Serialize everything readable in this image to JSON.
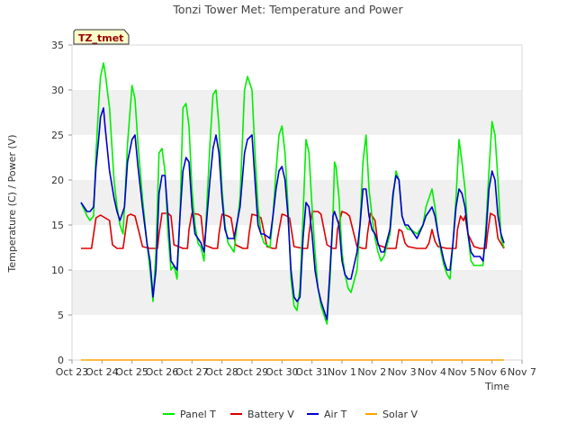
{
  "chart_data": {
    "type": "line",
    "title": "Tonzi Tower Met: Temperature and Power",
    "xlabel": "Time",
    "ylabel": "Temperature (C) / Power (V)",
    "ylim": [
      0,
      35
    ],
    "yticks": [
      0,
      5,
      10,
      15,
      20,
      25,
      30,
      35
    ],
    "xlim": [
      0,
      15
    ],
    "xticks": [
      0,
      1,
      2,
      3,
      4,
      5,
      6,
      7,
      8,
      9,
      10,
      11,
      12,
      13,
      14,
      15
    ],
    "xtick_labels": [
      "Oct 23",
      "Oct 24",
      "Oct 25",
      "Oct 26",
      "Oct 27",
      "Oct 28",
      "Oct 29",
      "Oct 30",
      "Oct 31",
      "Nov 1",
      "Nov 2",
      "Nov 3",
      "Nov 4",
      "Nov 5",
      "Nov 6",
      "Nov 7"
    ],
    "station_label": "TZ_tmet",
    "grid": "horizontal bands",
    "legend_position": "bottom",
    "series": [
      {
        "name": "Panel T",
        "color": "#00ee00",
        "x": [
          0.3,
          0.5,
          0.6,
          0.72,
          0.8,
          0.9,
          0.95,
          1.05,
          1.1,
          1.25,
          1.4,
          1.5,
          1.6,
          1.7,
          1.75,
          1.85,
          2.0,
          2.1,
          2.2,
          2.35,
          2.5,
          2.6,
          2.7,
          2.8,
          2.9,
          3.0,
          3.1,
          3.2,
          3.3,
          3.4,
          3.5,
          3.6,
          3.7,
          3.8,
          3.9,
          4.0,
          4.1,
          4.2,
          4.3,
          4.4,
          4.6,
          4.7,
          4.8,
          4.9,
          5.0,
          5.1,
          5.2,
          5.3,
          5.4,
          5.6,
          5.75,
          5.85,
          6.0,
          6.1,
          6.2,
          6.3,
          6.4,
          6.6,
          6.7,
          6.8,
          6.9,
          7.0,
          7.1,
          7.2,
          7.3,
          7.4,
          7.5,
          7.6,
          7.7,
          7.8,
          7.9,
          8.0,
          8.1,
          8.2,
          8.3,
          8.4,
          8.5,
          8.6,
          8.7,
          8.75,
          8.8,
          8.9,
          9.0,
          9.1,
          9.2,
          9.3,
          9.5,
          9.6,
          9.7,
          9.8,
          9.9,
          10.0,
          10.1,
          10.2,
          10.3,
          10.4,
          10.6,
          10.7,
          10.8,
          10.9,
          11.0,
          11.1,
          11.2,
          11.3,
          11.5,
          11.7,
          11.8,
          11.9,
          12.0,
          12.1,
          12.2,
          12.3,
          12.4,
          12.5,
          12.6,
          12.7,
          12.8,
          12.9,
          13.0,
          13.1,
          13.2,
          13.3,
          13.4,
          13.6,
          13.7,
          13.8,
          13.9,
          14.0,
          14.1,
          14.2,
          14.3,
          14.4
        ],
        "values": [
          17.5,
          16.0,
          15.5,
          16.0,
          23.0,
          29.0,
          31.5,
          33.0,
          32.0,
          28.0,
          20.0,
          17.0,
          15.0,
          14.0,
          17.0,
          24.0,
          30.5,
          29.0,
          24.0,
          18.0,
          13.0,
          10.0,
          6.5,
          12.0,
          23.0,
          23.5,
          21.0,
          14.0,
          10.0,
          10.5,
          9.0,
          16.0,
          28.0,
          28.5,
          26.0,
          19.0,
          15.0,
          13.0,
          12.5,
          11.0,
          24.0,
          29.5,
          30.0,
          26.0,
          19.0,
          15.0,
          13.0,
          12.5,
          12.0,
          18.0,
          30.0,
          31.5,
          30.0,
          23.0,
          17.0,
          14.0,
          13.0,
          12.5,
          16.0,
          21.0,
          25.0,
          26.0,
          23.0,
          17.0,
          9.0,
          6.0,
          5.5,
          8.0,
          16.0,
          24.5,
          23.0,
          17.0,
          12.0,
          8.0,
          6.0,
          5.0,
          4.0,
          9.0,
          16.0,
          22.0,
          21.5,
          18.0,
          12.0,
          9.5,
          8.0,
          7.5,
          10.0,
          15.0,
          22.0,
          25.0,
          19.0,
          16.0,
          13.5,
          12.0,
          11.0,
          11.5,
          14.0,
          18.0,
          21.0,
          20.0,
          16.0,
          15.0,
          14.5,
          14.5,
          14.0,
          15.0,
          17.0,
          18.0,
          19.0,
          17.0,
          14.0,
          12.0,
          10.5,
          9.5,
          9.0,
          13.0,
          18.0,
          24.5,
          22.0,
          19.0,
          14.0,
          11.0,
          10.5,
          10.5,
          10.5,
          15.0,
          21.0,
          26.5,
          25.0,
          20.0,
          13.5,
          12.5
        ]
      },
      {
        "name": "Battery V",
        "color": "#dd0000",
        "x": [
          0.3,
          0.65,
          0.7,
          0.8,
          0.95,
          1.0,
          1.25,
          1.35,
          1.5,
          1.7,
          1.75,
          1.85,
          1.95,
          2.1,
          2.25,
          2.35,
          2.6,
          2.85,
          2.9,
          3.0,
          3.2,
          3.3,
          3.4,
          3.7,
          3.85,
          3.9,
          4.0,
          4.2,
          4.3,
          4.4,
          4.7,
          4.85,
          4.9,
          5.0,
          5.2,
          5.3,
          5.45,
          5.7,
          5.85,
          5.9,
          6.0,
          6.2,
          6.3,
          6.5,
          6.7,
          6.8,
          6.85,
          7.0,
          7.1,
          7.25,
          7.4,
          7.7,
          7.85,
          7.9,
          8.0,
          8.2,
          8.3,
          8.5,
          8.7,
          8.8,
          8.85,
          9.0,
          9.15,
          9.25,
          9.5,
          9.7,
          9.8,
          9.85,
          9.95,
          10.1,
          10.2,
          10.5,
          10.8,
          10.9,
          11.0,
          11.1,
          11.2,
          11.5,
          11.8,
          11.9,
          12.0,
          12.1,
          12.2,
          12.5,
          12.7,
          12.8,
          12.85,
          12.95,
          13.05,
          13.1,
          13.2,
          13.4,
          13.6,
          13.8,
          13.85,
          13.95,
          14.1,
          14.2,
          14.4
        ],
        "values": [
          12.4,
          12.4,
          13.5,
          15.8,
          16.1,
          16.0,
          15.5,
          12.8,
          12.4,
          12.4,
          13.5,
          16.0,
          16.2,
          16.0,
          14.0,
          12.6,
          12.4,
          12.4,
          14.0,
          16.3,
          16.3,
          16.0,
          12.8,
          12.4,
          12.4,
          14.5,
          16.3,
          16.2,
          16.0,
          12.8,
          12.4,
          12.4,
          14.0,
          16.2,
          16.0,
          15.8,
          12.8,
          12.4,
          12.4,
          14.0,
          16.2,
          16.0,
          15.8,
          12.6,
          12.4,
          12.4,
          13.5,
          16.2,
          16.1,
          15.8,
          12.6,
          12.4,
          12.4,
          14.0,
          16.5,
          16.5,
          16.2,
          12.8,
          12.4,
          12.4,
          14.5,
          16.5,
          16.3,
          16.0,
          12.6,
          12.4,
          12.4,
          14.0,
          16.3,
          15.5,
          12.8,
          12.4,
          12.4,
          14.5,
          14.3,
          13.0,
          12.6,
          12.4,
          12.4,
          13.0,
          14.5,
          13.2,
          12.6,
          12.4,
          12.4,
          12.4,
          14.5,
          16.0,
          15.5,
          16.0,
          14.0,
          12.6,
          12.4,
          12.4,
          14.0,
          16.3,
          16.0,
          13.5,
          12.4
        ]
      },
      {
        "name": "Air T",
        "color": "#0000cc",
        "x": [
          0.3,
          0.5,
          0.6,
          0.72,
          0.8,
          0.9,
          0.95,
          1.05,
          1.1,
          1.25,
          1.4,
          1.5,
          1.6,
          1.7,
          1.75,
          1.85,
          2.0,
          2.1,
          2.2,
          2.35,
          2.5,
          2.6,
          2.7,
          2.8,
          2.9,
          3.0,
          3.1,
          3.2,
          3.3,
          3.4,
          3.5,
          3.6,
          3.7,
          3.8,
          3.9,
          4.0,
          4.1,
          4.2,
          4.3,
          4.4,
          4.6,
          4.7,
          4.8,
          4.9,
          5.0,
          5.1,
          5.2,
          5.3,
          5.4,
          5.6,
          5.75,
          5.85,
          6.0,
          6.1,
          6.2,
          6.3,
          6.4,
          6.6,
          6.7,
          6.8,
          6.9,
          7.0,
          7.1,
          7.2,
          7.3,
          7.4,
          7.5,
          7.6,
          7.7,
          7.8,
          7.9,
          8.0,
          8.1,
          8.2,
          8.3,
          8.4,
          8.5,
          8.6,
          8.7,
          8.75,
          8.8,
          8.9,
          9.0,
          9.1,
          9.2,
          9.3,
          9.5,
          9.6,
          9.7,
          9.8,
          9.9,
          10.0,
          10.1,
          10.2,
          10.3,
          10.4,
          10.6,
          10.7,
          10.8,
          10.9,
          11.0,
          11.1,
          11.2,
          11.3,
          11.5,
          11.7,
          11.8,
          11.9,
          12.0,
          12.1,
          12.2,
          12.3,
          12.4,
          12.5,
          12.6,
          12.7,
          12.8,
          12.9,
          13.0,
          13.1,
          13.2,
          13.3,
          13.4,
          13.6,
          13.7,
          13.8,
          13.9,
          14.0,
          14.1,
          14.2,
          14.3,
          14.4
        ],
        "values": [
          17.5,
          16.5,
          16.5,
          17.0,
          21.5,
          25.0,
          27.0,
          28.0,
          26.0,
          21.0,
          18.0,
          16.5,
          15.5,
          16.5,
          17.0,
          22.0,
          24.5,
          25.0,
          21.5,
          17.0,
          13.0,
          11.0,
          7.0,
          10.0,
          18.5,
          20.5,
          20.5,
          16.0,
          11.0,
          10.5,
          10.0,
          16.0,
          21.0,
          22.5,
          22.0,
          17.0,
          14.0,
          13.5,
          13.0,
          12.0,
          20.0,
          23.5,
          25.0,
          23.0,
          18.0,
          14.5,
          13.5,
          13.5,
          13.5,
          17.0,
          23.0,
          24.5,
          25.0,
          20.0,
          15.0,
          14.0,
          14.0,
          13.5,
          16.0,
          19.0,
          21.0,
          21.5,
          20.0,
          16.0,
          10.0,
          7.0,
          6.5,
          7.0,
          13.5,
          17.5,
          17.0,
          14.0,
          10.0,
          8.0,
          6.5,
          5.5,
          4.5,
          10.0,
          16.0,
          16.5,
          16.0,
          15.0,
          11.0,
          9.5,
          9.0,
          9.0,
          12.0,
          15.0,
          19.0,
          19.0,
          16.0,
          14.5,
          14.0,
          13.0,
          12.0,
          12.0,
          14.5,
          18.5,
          20.5,
          20.0,
          16.0,
          15.0,
          15.0,
          14.5,
          13.5,
          15.0,
          16.0,
          16.5,
          17.0,
          16.0,
          14.0,
          12.5,
          11.0,
          10.0,
          10.0,
          13.0,
          17.0,
          19.0,
          18.5,
          17.0,
          14.0,
          12.0,
          11.5,
          11.5,
          11.0,
          14.0,
          19.0,
          21.0,
          20.0,
          16.0,
          14.0,
          13.0
        ]
      },
      {
        "name": "Solar V",
        "color": "#ffa500",
        "x": [
          0.3,
          14.4
        ],
        "values": [
          0,
          0
        ]
      }
    ]
  }
}
